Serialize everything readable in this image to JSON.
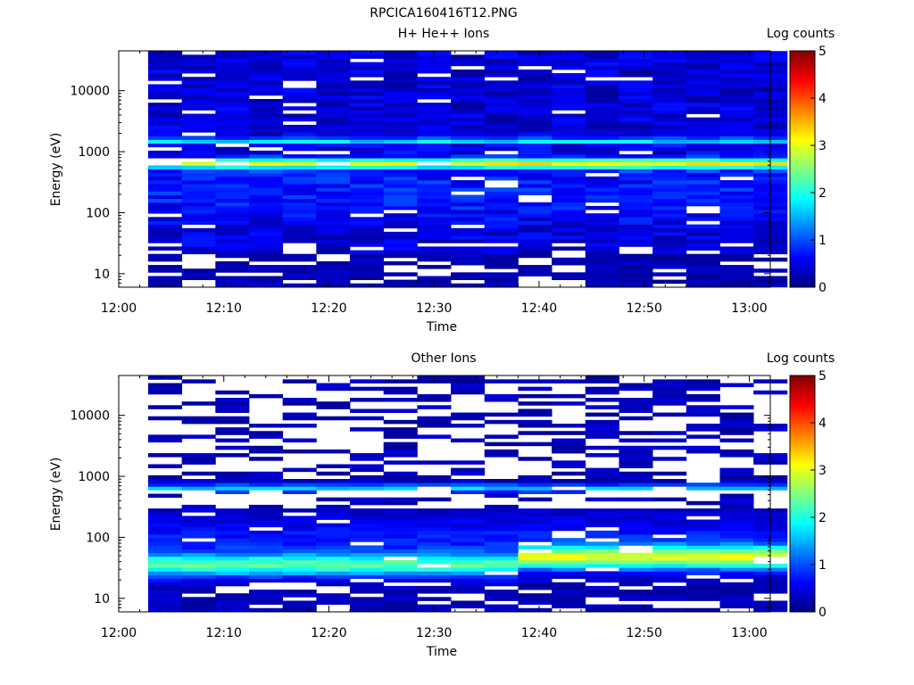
{
  "figure_title": "RPCICA160416T12.PNG",
  "chart_data": [
    {
      "type": "heatmap",
      "title": "H+ He++ Ions",
      "xlabel": "Time",
      "ylabel": "Energy (eV)",
      "x_ticks": [
        "12:00",
        "12:10",
        "12:20",
        "12:30",
        "12:40",
        "12:50",
        "13:00"
      ],
      "xlim": [
        "12:00",
        "13:02"
      ],
      "y_scale": "log",
      "y_ticks": [
        10,
        100,
        1000,
        10000
      ],
      "ylim": [
        6,
        45000
      ],
      "time_bins": 19,
      "bin_width_min": 3.2,
      "colorbar": {
        "label": "Log counts",
        "ticks": [
          0,
          1,
          2,
          3,
          4,
          5
        ],
        "range": [
          0,
          5
        ],
        "colormap": "jet"
      },
      "profile": {
        "gaps": "frequent below 30 eV",
        "bands": [
          {
            "energy_ev": 650,
            "log_counts": 2.7
          },
          {
            "energy_ev": 1500,
            "log_counts": 1.6
          }
        ],
        "background_log_counts": 0.3
      }
    },
    {
      "type": "heatmap",
      "title": "Other Ions",
      "xlabel": "Time",
      "ylabel": "Energy (eV)",
      "x_ticks": [
        "12:00",
        "12:10",
        "12:20",
        "12:30",
        "12:40",
        "12:50",
        "13:00"
      ],
      "xlim": [
        "12:00",
        "13:02"
      ],
      "y_scale": "log",
      "y_ticks": [
        10,
        100,
        1000,
        10000
      ],
      "ylim": [
        6,
        45000
      ],
      "time_bins": 19,
      "bin_width_min": 3.2,
      "colorbar": {
        "label": "Log counts",
        "ticks": [
          0,
          1,
          2,
          3,
          4,
          5
        ],
        "range": [
          0,
          5
        ],
        "colormap": "jet"
      },
      "profile": {
        "gaps": "sparse above 300 eV",
        "bands": [
          {
            "energy_ev": 650,
            "log_counts": 1.5
          },
          {
            "energy_ev": 38,
            "log_counts": 2.0,
            "rising_to": 2.9,
            "after": "12:35"
          }
        ],
        "background_log_counts": 0.2
      }
    }
  ]
}
